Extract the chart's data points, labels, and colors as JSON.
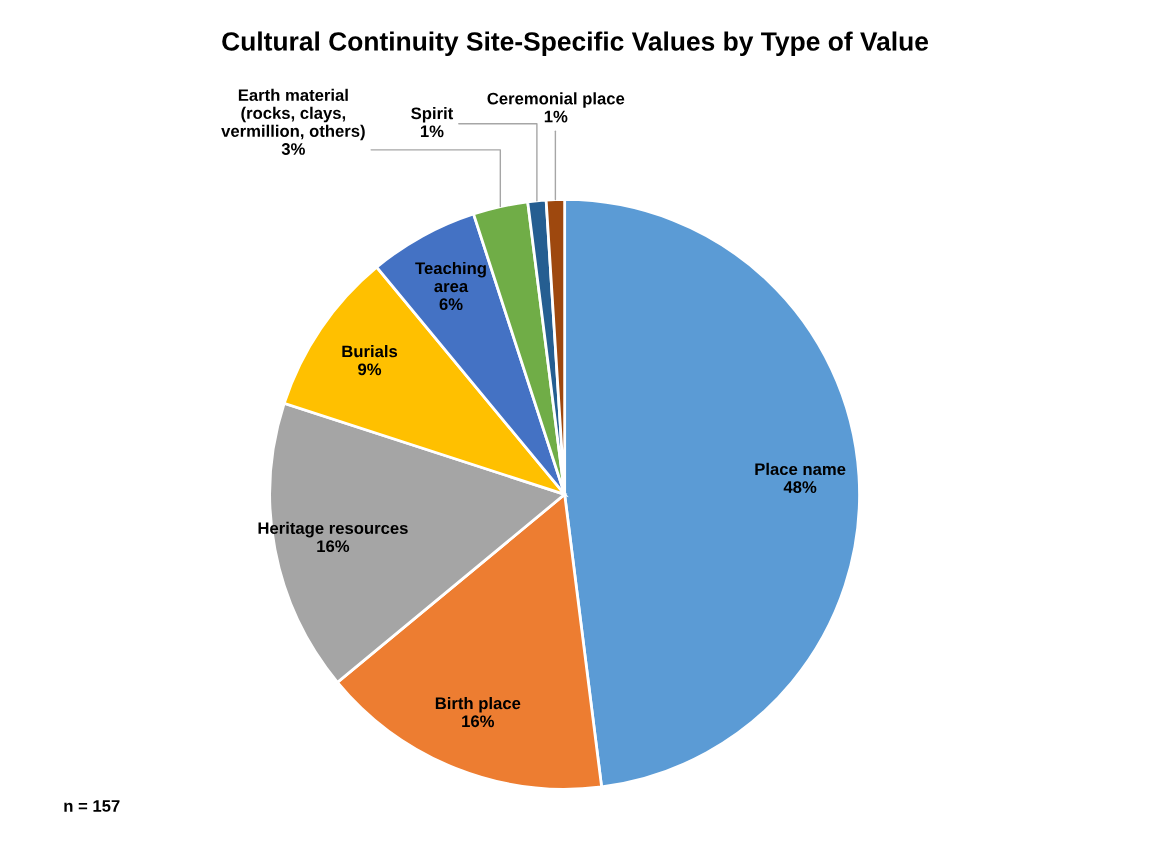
{
  "chart_data": {
    "type": "pie",
    "title": "Cultural Continuity Site-Specific Values by Type of Value",
    "categories": [
      "Place name",
      "Birth place",
      "Heritage resources",
      "Burials",
      "Teaching\narea",
      "Earth material\n(rocks, clays,\nvermillion, others)",
      "Spirit",
      "Ceremonial place"
    ],
    "values": [
      48,
      16,
      16,
      9,
      6,
      3,
      1,
      1
    ],
    "value_labels": [
      "48%",
      "16%",
      "16%",
      "9%",
      "6%",
      "3%",
      "1%",
      "1%"
    ],
    "colors": [
      "#5b9bd5",
      "#ed7d31",
      "#a5a5a5",
      "#ffc000",
      "#4472c4",
      "#70ad47",
      "#255e91",
      "#9e480e"
    ],
    "annotations": [
      "n = 157"
    ]
  }
}
